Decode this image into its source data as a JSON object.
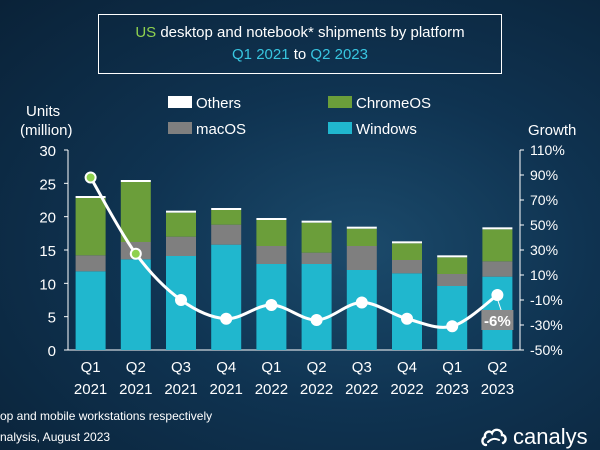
{
  "title": {
    "country": "US",
    "rest": " desktop and notebook* shipments by platform",
    "from": "Q1 2021",
    "to_word": " to ",
    "to": "Q2 2023"
  },
  "footnotes": [
    "op and mobile workstations respectively",
    "nalysis, August 2023"
  ],
  "logo": {
    "text": "canalys"
  },
  "colors": {
    "windows": "#20b7ce",
    "macos": "#7f7f7f",
    "chromeos": "#6b9e3a",
    "others": "#ffffff",
    "growth_line": "#ffffff",
    "growth_marker": "#8fd14f",
    "callout_bg": "#8a8a8a"
  },
  "chart_data": {
    "type": "bar",
    "stacked": true,
    "categories": [
      [
        "Q1",
        "2021"
      ],
      [
        "Q2",
        "2021"
      ],
      [
        "Q3",
        "2021"
      ],
      [
        "Q4",
        "2021"
      ],
      [
        "Q1",
        "2022"
      ],
      [
        "Q2",
        "2022"
      ],
      [
        "Q3",
        "2022"
      ],
      [
        "Q4",
        "2022"
      ],
      [
        "Q1",
        "2023"
      ],
      [
        "Q2",
        "2023"
      ]
    ],
    "series": [
      {
        "name": "Windows",
        "values": [
          11.8,
          13.6,
          14.1,
          15.8,
          12.9,
          12.9,
          12.0,
          11.5,
          9.6,
          11.0
        ]
      },
      {
        "name": "macOS",
        "values": [
          2.4,
          2.6,
          2.9,
          3.0,
          2.7,
          1.7,
          3.6,
          2.0,
          1.8,
          2.3
        ]
      },
      {
        "name": "ChromeOS",
        "values": [
          8.6,
          9.0,
          3.6,
          2.2,
          3.9,
          4.5,
          2.6,
          2.5,
          2.5,
          4.8
        ]
      },
      {
        "name": "Others",
        "values": [
          0.3,
          0.3,
          0.3,
          0.3,
          0.3,
          0.3,
          0.3,
          0.3,
          0.3,
          0.3
        ]
      }
    ],
    "growth": {
      "name": "Growth",
      "values": [
        88,
        27,
        -10,
        -25,
        -14,
        -26,
        -12,
        -25,
        -31,
        -6
      ],
      "callout": "-6%"
    },
    "ylabel": [
      "Units",
      "(million)"
    ],
    "y2label": "Growth",
    "ylim": [
      0,
      30
    ],
    "yticks": [
      "0",
      "5",
      "10",
      "15",
      "20",
      "25",
      "30"
    ],
    "y2lim": [
      -50,
      110
    ],
    "y2ticks": [
      "-50%",
      "-30%",
      "-10%",
      "10%",
      "30%",
      "50%",
      "70%",
      "90%",
      "110%"
    ],
    "legend": [
      {
        "name": "Others",
        "key": "others"
      },
      {
        "name": "ChromeOS",
        "key": "chromeos"
      },
      {
        "name": "macOS",
        "key": "macos"
      },
      {
        "name": "Windows",
        "key": "windows"
      }
    ],
    "legend_position": "top"
  }
}
